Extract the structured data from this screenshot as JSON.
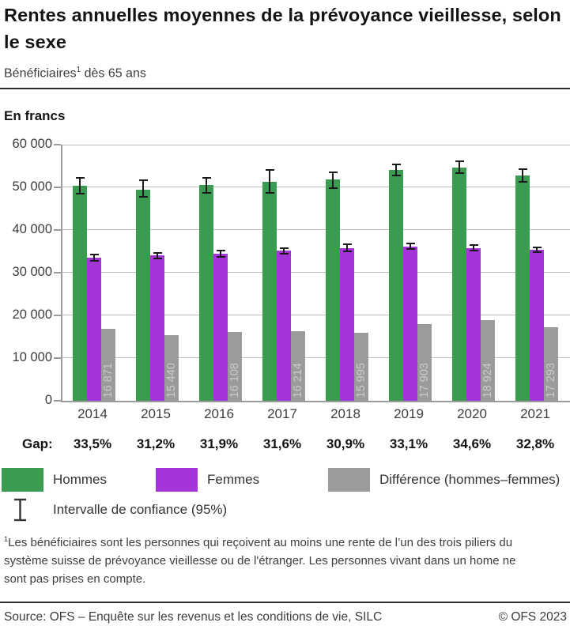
{
  "header": {
    "title": "Rentes annuelles moyennes de la prévoyance vieillesse, selon le sexe",
    "subtitle_text": "Bénéficiaires",
    "subtitle_marker": "1",
    "subtitle_rest": " dès 65 ans"
  },
  "chart_data": {
    "type": "bar",
    "unit_label": "En francs",
    "categories": [
      "2014",
      "2015",
      "2016",
      "2017",
      "2018",
      "2019",
      "2020",
      "2021"
    ],
    "series": [
      {
        "name": "Hommes",
        "color": "#3b9b50",
        "values": [
          50400,
          49500,
          50500,
          51300,
          51800,
          54100,
          54700,
          52700
        ],
        "ci_low": [
          48400,
          47500,
          48600,
          48500,
          49700,
          52600,
          53200,
          51100
        ],
        "ci_high": [
          52400,
          51800,
          52400,
          54300,
          53700,
          55600,
          56300,
          54400
        ]
      },
      {
        "name": "Femmes",
        "color": "#a436d9",
        "values": [
          33500,
          34000,
          34400,
          35100,
          35800,
          36200,
          35800,
          35400
        ],
        "ci_low": [
          32600,
          33100,
          33500,
          34200,
          34800,
          35300,
          35000,
          34600
        ],
        "ci_high": [
          34500,
          34900,
          35300,
          36000,
          36800,
          37100,
          36600,
          36200
        ]
      },
      {
        "name": "Différence (hommes–femmes)",
        "color": "#9b9b9b",
        "values": [
          16871,
          15440,
          16108,
          16214,
          15995,
          17903,
          18924,
          17293
        ],
        "bar_labels": [
          "16 871",
          "15 440",
          "16 108",
          "16 214",
          "15 995",
          "17 903",
          "18 924",
          "17 293"
        ]
      }
    ],
    "gap_label": "Gap:",
    "gap_values": [
      "33,5%",
      "31,2%",
      "31,9%",
      "31,6%",
      "30,9%",
      "33,1%",
      "34,6%",
      "32,8%"
    ],
    "ylim": [
      0,
      60000
    ],
    "ytick_labels": [
      "0",
      "10 000",
      "20 000",
      "30 000",
      "40 000",
      "50 000",
      "60 000"
    ],
    "grid": true,
    "legend_position": "bottom",
    "ci_legend_label": "Intervalle de confiance (95%)"
  },
  "footnote": {
    "marker": "1",
    "text": "Les bénéficiaires sont les personnes qui reçoivent au moins une rente de l’un des trois piliers du système suisse de prévoyance vieillesse ou de l'étranger. Les personnes vivant dans un home ne sont pas prises en compte."
  },
  "footer": {
    "source": "Source: OFS – Enquête sur les revenus et les conditions de vie, SILC",
    "copyright": "© OFS 2023"
  }
}
